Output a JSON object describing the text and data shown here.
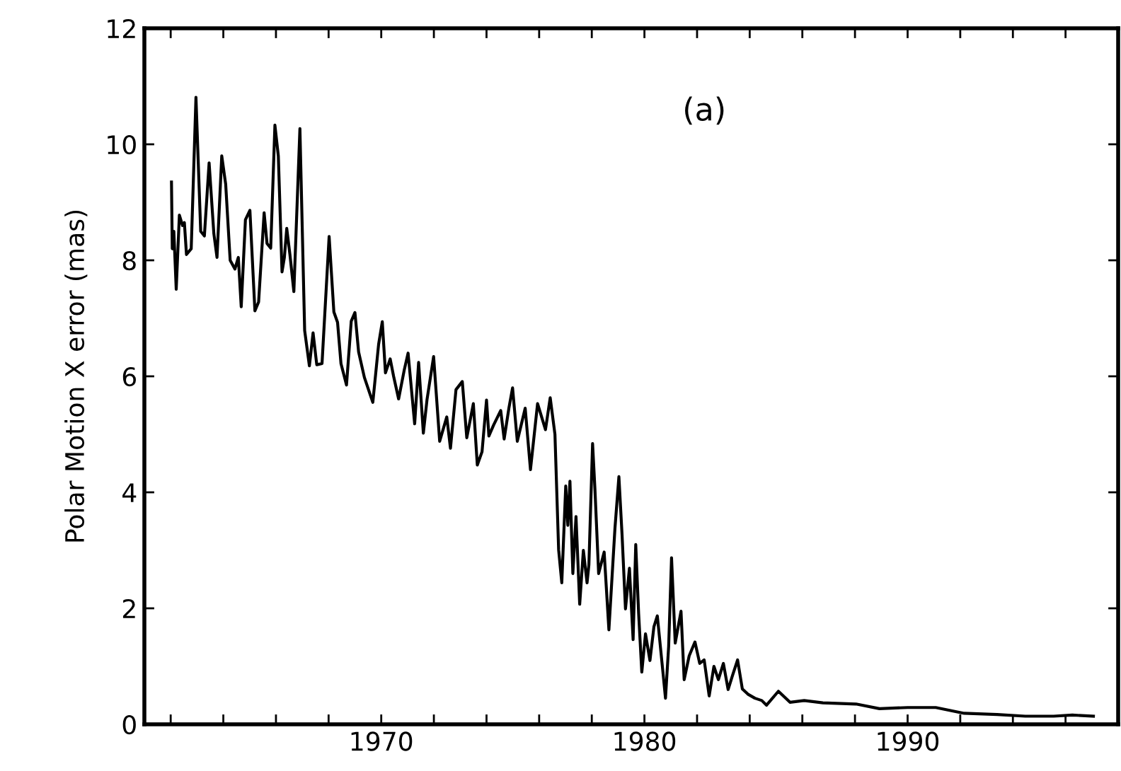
{
  "chart_data": {
    "type": "line",
    "ylabel": "Polar Motion X error (mas)",
    "annotations": [
      "(a)"
    ],
    "xlim": [
      1961,
      1998
    ],
    "ylim": [
      0,
      12
    ],
    "yticks": [
      0,
      2,
      4,
      6,
      8,
      10,
      12
    ],
    "xticks": [
      {
        "value": 1962,
        "label": null
      },
      {
        "value": 1964,
        "label": null
      },
      {
        "value": 1966,
        "label": null
      },
      {
        "value": 1968,
        "label": null
      },
      1970,
      {
        "value": 1972,
        "label": null
      },
      {
        "value": 1974,
        "label": null
      },
      {
        "value": 1976,
        "label": null
      },
      {
        "value": 1978,
        "label": null
      },
      1980,
      {
        "value": 1982,
        "label": null
      },
      {
        "value": 1984,
        "label": null
      },
      {
        "value": 1986,
        "label": null
      },
      {
        "value": 1988,
        "label": null
      },
      1990,
      {
        "value": 1992,
        "label": null
      },
      {
        "value": 1994,
        "label": null
      },
      {
        "value": 1996,
        "label": null
      },
      {
        "value": 1998,
        "label": null
      }
    ],
    "grid": false,
    "series": [
      {
        "color": "#000000",
        "x": [
          1962.03,
          1962.06,
          1962.12,
          1962.21,
          1962.33,
          1962.45,
          1962.52,
          1962.6,
          1962.78,
          1962.96,
          1963.14,
          1963.28,
          1963.46,
          1963.64,
          1963.76,
          1963.94,
          1964.09,
          1964.26,
          1964.44,
          1964.57,
          1964.68,
          1964.84,
          1965.01,
          1965.2,
          1965.34,
          1965.55,
          1965.66,
          1965.8,
          1965.96,
          1966.09,
          1966.23,
          1966.32,
          1966.41,
          1966.53,
          1966.68,
          1966.91,
          1967.09,
          1967.27,
          1967.41,
          1967.55,
          1967.75,
          1968.02,
          1968.2,
          1968.34,
          1968.47,
          1968.68,
          1968.86,
          1969.0,
          1969.14,
          1969.36,
          1969.68,
          1969.9,
          1970.04,
          1970.16,
          1970.34,
          1970.47,
          1970.66,
          1970.87,
          1971.02,
          1971.27,
          1971.42,
          1971.6,
          1971.74,
          1971.99,
          1972.22,
          1972.49,
          1972.63,
          1972.84,
          1973.08,
          1973.25,
          1973.5,
          1973.65,
          1973.83,
          1974.0,
          1974.09,
          1974.27,
          1974.54,
          1974.67,
          1974.85,
          1974.99,
          1975.17,
          1975.47,
          1975.67,
          1975.94,
          1976.24,
          1976.42,
          1976.6,
          1976.74,
          1976.86,
          1977.01,
          1977.09,
          1977.17,
          1977.28,
          1977.4,
          1977.54,
          1977.68,
          1977.82,
          1977.89,
          1978.03,
          1978.12,
          1978.26,
          1978.47,
          1978.65,
          1978.88,
          1979.03,
          1979.15,
          1979.28,
          1979.43,
          1979.57,
          1979.67,
          1979.78,
          1979.9,
          1980.04,
          1980.21,
          1980.36,
          1980.49,
          1980.67,
          1980.8,
          1980.92,
          1981.03,
          1981.17,
          1981.39,
          1981.51,
          1981.7,
          1981.92,
          1982.1,
          1982.27,
          1982.46,
          1982.64,
          1982.81,
          1983.0,
          1983.18,
          1983.36,
          1983.54,
          1983.72,
          1983.93,
          1984.2,
          1984.46,
          1984.64,
          1985.09,
          1985.53,
          1986.07,
          1986.78,
          1988.04,
          1988.93,
          1990.0,
          1991.07,
          1992.15,
          1993.4,
          1994.47,
          1995.55,
          1996.26,
          1997.06
        ],
        "values": [
          9.35,
          8.2,
          8.5,
          7.5,
          8.78,
          8.6,
          8.65,
          8.1,
          8.2,
          10.81,
          8.5,
          8.42,
          9.68,
          8.46,
          8.05,
          9.8,
          9.31,
          8.0,
          7.85,
          8.05,
          7.2,
          8.7,
          8.86,
          7.13,
          7.28,
          8.82,
          8.29,
          8.21,
          10.33,
          9.8,
          7.8,
          8.05,
          8.55,
          8.1,
          7.46,
          10.27,
          6.79,
          6.18,
          6.75,
          6.2,
          6.22,
          8.41,
          7.11,
          6.93,
          6.22,
          5.85,
          6.95,
          7.1,
          6.42,
          5.98,
          5.55,
          6.55,
          6.94,
          6.06,
          6.3,
          6.0,
          5.61,
          6.1,
          6.4,
          5.18,
          6.24,
          5.02,
          5.6,
          6.34,
          4.88,
          5.3,
          4.76,
          5.77,
          5.91,
          4.94,
          5.53,
          4.47,
          4.7,
          5.59,
          4.97,
          5.16,
          5.41,
          4.92,
          5.45,
          5.8,
          4.88,
          5.45,
          4.39,
          5.53,
          5.08,
          5.63,
          5.0,
          3.01,
          2.44,
          4.11,
          3.43,
          4.19,
          2.6,
          3.58,
          2.07,
          3.0,
          2.44,
          2.75,
          4.84,
          4.05,
          2.6,
          2.97,
          1.63,
          3.38,
          4.27,
          3.27,
          1.99,
          2.69,
          1.46,
          3.1,
          1.91,
          0.9,
          1.56,
          1.1,
          1.68,
          1.87,
          1.05,
          0.45,
          1.34,
          2.87,
          1.4,
          1.95,
          0.77,
          1.18,
          1.42,
          1.05,
          1.11,
          0.49,
          1.0,
          0.77,
          1.05,
          0.6,
          0.86,
          1.11,
          0.61,
          0.52,
          0.45,
          0.41,
          0.33,
          0.57,
          0.38,
          0.41,
          0.37,
          0.35,
          0.27,
          0.29,
          0.29,
          0.19,
          0.17,
          0.14,
          0.14,
          0.16,
          0.14
        ]
      }
    ]
  }
}
